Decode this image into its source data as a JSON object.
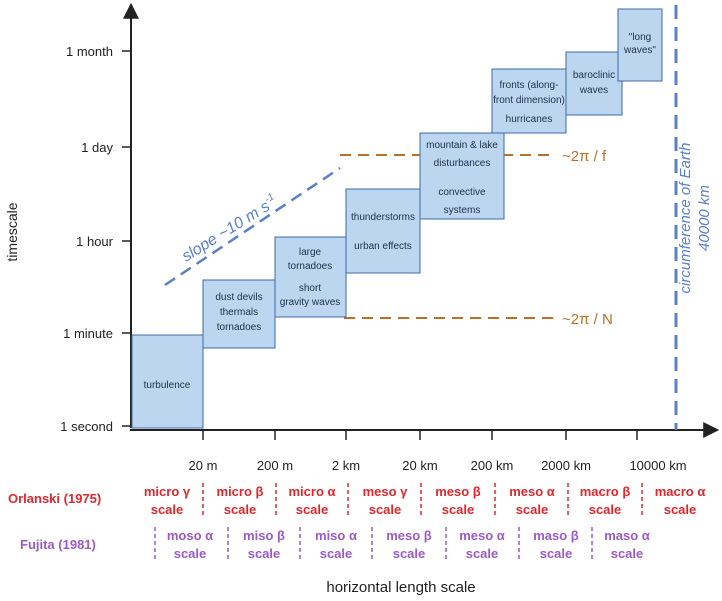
{
  "axes": {
    "y_label": "timescale",
    "x_label": "horizontal length scale",
    "y_ticks": [
      "1 second",
      "1 minute",
      "1 hour",
      "1 day",
      "1 month"
    ],
    "x_ticks": [
      "20 m",
      "200 m",
      "2 km",
      "20 km",
      "200 km",
      "2000 km",
      "10000 km"
    ]
  },
  "boxes": [
    {
      "lines": [
        "turbulence"
      ]
    },
    {
      "lines": [
        "dust devils",
        "thermals",
        "tornadoes"
      ]
    },
    {
      "lines": [
        "large",
        "tornadoes",
        "short",
        "gravity waves"
      ]
    },
    {
      "lines": [
        "thunderstorms",
        "urban effects"
      ]
    },
    {
      "lines": [
        "mountain & lake",
        "disturbances",
        "convective",
        "systems"
      ]
    },
    {
      "lines": [
        "fronts (along-",
        "front dimension)",
        "hurricanes"
      ]
    },
    {
      "lines": [
        "baroclinic",
        "waves"
      ]
    },
    {
      "lines": [
        "\"long",
        "waves\""
      ]
    }
  ],
  "annotations": {
    "slope": "slope ~10 m s",
    "slope_sup": "-1",
    "coriolis": "~2π / f",
    "brunt": "~2π / N",
    "earth_line1": "circumference of Earth",
    "earth_line2": "40000 km"
  },
  "orlanski": {
    "label": "Orlanski (1975)",
    "cells": [
      {
        "top": "micro γ",
        "bottom": "scale"
      },
      {
        "top": "micro β",
        "bottom": "scale"
      },
      {
        "top": "micro α",
        "bottom": "scale"
      },
      {
        "top": "meso γ",
        "bottom": "scale"
      },
      {
        "top": "meso β",
        "bottom": "scale"
      },
      {
        "top": "meso α",
        "bottom": "scale"
      },
      {
        "top": "macro β",
        "bottom": "scale"
      },
      {
        "top": "macro α",
        "bottom": "scale"
      }
    ]
  },
  "fujita": {
    "label": "Fujita (1981)",
    "cells": [
      {
        "top": "moso α",
        "bottom": "scale"
      },
      {
        "top": "miso β",
        "bottom": "scale"
      },
      {
        "top": "miso α",
        "bottom": "scale"
      },
      {
        "top": "meso β",
        "bottom": "scale"
      },
      {
        "top": "meso α",
        "bottom": "scale"
      },
      {
        "top": "maso β",
        "bottom": "scale"
      },
      {
        "top": "maso α",
        "bottom": "scale"
      }
    ]
  },
  "colors": {
    "box_fill": "#bcd6f0",
    "box_stroke": "#3c6aa6",
    "orlanski": "#e3262c",
    "fujita": "#9b59c9",
    "dashed_orange": "#b8702a",
    "dashed_blue": "#5a80c8"
  }
}
